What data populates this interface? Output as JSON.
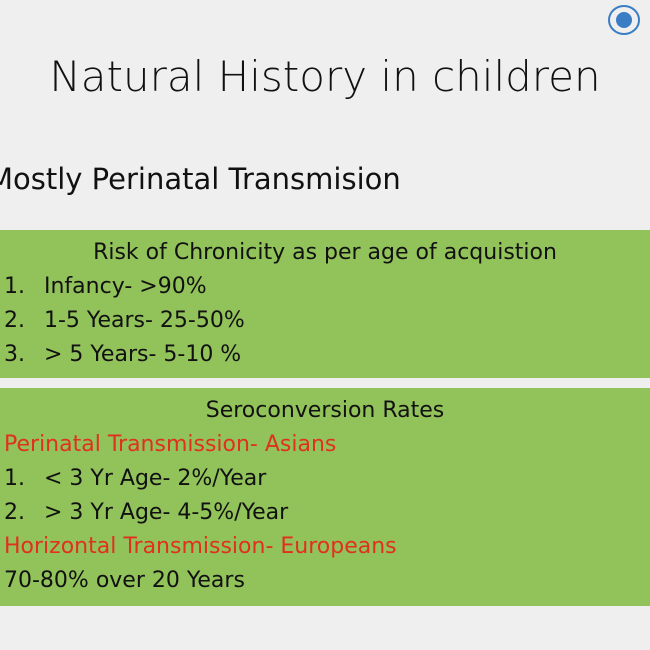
{
  "slide": {
    "title": "Natural History in children",
    "subtitle": "Mostly Perinatal Transmision",
    "box1": {
      "heading": "Risk of Chronicity as per age of acquistion",
      "items": [
        {
          "num": "1.",
          "text": "Infancy- >90%"
        },
        {
          "num": "2.",
          "text": "1-5 Years- 25-50%"
        },
        {
          "num": "3.",
          "text": "> 5 Years- 5-10 %"
        }
      ]
    },
    "box2": {
      "heading": "Seroconversion Rates",
      "red1": "Perinatal Transmission- Asians",
      "items": [
        {
          "num": "1.",
          "text": "< 3 Yr Age- 2%/Year"
        },
        {
          "num": "2.",
          "text": "> 3 Yr Age- 4-5%/Year"
        }
      ],
      "red2": "Horizontal Transmission- Europeans",
      "last": "70-80% over 20 Years"
    }
  }
}
